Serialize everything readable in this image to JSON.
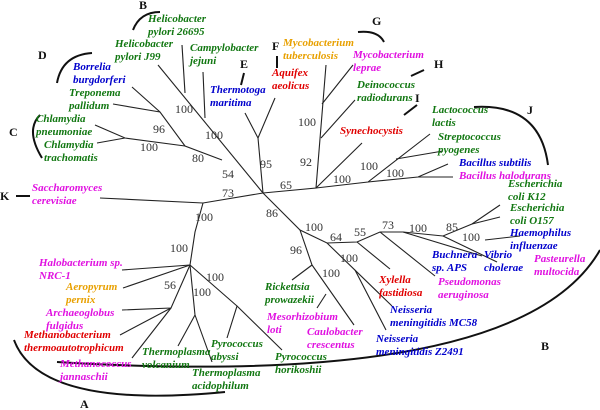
{
  "colors": {
    "green": "#117711",
    "blue": "#0000cc",
    "magenta": "#e010e0",
    "red": "#e00000",
    "orange": "#e8a000"
  },
  "taxa": [
    {
      "lines": [
        "Helicobacter",
        "pylori 26695"
      ],
      "color": "green"
    },
    {
      "lines": [
        "Helicobacter",
        "pylori J99"
      ],
      "color": "green"
    },
    {
      "lines": [
        "Campylobacter",
        "jejuni"
      ],
      "color": "green"
    },
    {
      "lines": [
        "Borrelia",
        "burgdorferi"
      ],
      "color": "blue"
    },
    {
      "lines": [
        "Treponema",
        "pallidum"
      ],
      "color": "green"
    },
    {
      "lines": [
        "Chlamydia",
        "pneumoniae"
      ],
      "color": "green"
    },
    {
      "lines": [
        "Chlamydia",
        "trachomatis"
      ],
      "color": "green"
    },
    {
      "lines": [
        "Thermotoga",
        "maritima"
      ],
      "color": "blue"
    },
    {
      "lines": [
        "Aquifex",
        "aeolicus"
      ],
      "color": "red"
    },
    {
      "lines": [
        "Mycobacterium",
        "tuberculosis"
      ],
      "color": "orange"
    },
    {
      "lines": [
        "Mycobacterium",
        "leprae"
      ],
      "color": "magenta"
    },
    {
      "lines": [
        "Deinococcus",
        "radiodurans"
      ],
      "color": "green"
    },
    {
      "lines": [
        "Synechocystis"
      ],
      "color": "red"
    },
    {
      "lines": [
        "Lactococcus",
        "lactis"
      ],
      "color": "green"
    },
    {
      "lines": [
        "Streptococcus",
        "pyogenes"
      ],
      "color": "green"
    },
    {
      "lines": [
        "Bacillus subtilis"
      ],
      "color": "blue"
    },
    {
      "lines": [
        "Bacillus halodurans"
      ],
      "color": "magenta"
    },
    {
      "lines": [
        "Escherichia",
        "coli K12"
      ],
      "color": "green"
    },
    {
      "lines": [
        "Escherichia",
        "coli O157"
      ],
      "color": "green"
    },
    {
      "lines": [
        "Haemophilus",
        "influenzae"
      ],
      "color": "blue"
    },
    {
      "lines": [
        "Pasteurella",
        "multocida"
      ],
      "color": "magenta"
    },
    {
      "lines": [
        "Vibrio",
        "cholerae"
      ],
      "color": "blue"
    },
    {
      "lines": [
        "Buchnera",
        "sp. APS"
      ],
      "color": "blue"
    },
    {
      "lines": [
        "Pseudomonas",
        "aeruginosa"
      ],
      "color": "magenta"
    },
    {
      "lines": [
        "Xylella",
        "fastidiosa"
      ],
      "color": "red"
    },
    {
      "lines": [
        "Neisseria",
        "meningitidis MC58"
      ],
      "color": "blue"
    },
    {
      "lines": [
        "Neisseria",
        "meningitidis Z2491"
      ],
      "color": "blue"
    },
    {
      "lines": [
        "Caulobacter",
        "crescentus"
      ],
      "color": "magenta"
    },
    {
      "lines": [
        "Mesorhizobium",
        "loti"
      ],
      "color": "magenta"
    },
    {
      "lines": [
        "Rickettsia",
        "prowazekii"
      ],
      "color": "green"
    },
    {
      "lines": [
        "Pyrococcus",
        "horikoshii"
      ],
      "color": "green"
    },
    {
      "lines": [
        "Pyrococcus",
        "abyssi"
      ],
      "color": "green"
    },
    {
      "lines": [
        "Thermoplasma",
        "acidophilum"
      ],
      "color": "green"
    },
    {
      "lines": [
        "Thermoplasma",
        "volcanium"
      ],
      "color": "green"
    },
    {
      "lines": [
        "Methanococcus",
        "jannaschii"
      ],
      "color": "magenta"
    },
    {
      "lines": [
        "Methanobacterium",
        "thermoautotrophicum"
      ],
      "color": "red"
    },
    {
      "lines": [
        "Archaeoglobus",
        "fulgidus"
      ],
      "color": "magenta"
    },
    {
      "lines": [
        "Aeropyrum",
        "pernix"
      ],
      "color": "orange"
    },
    {
      "lines": [
        "Halobacterium sp.",
        "NRC-1"
      ],
      "color": "magenta"
    },
    {
      "lines": [
        "Saccharomyces",
        "cerevisiae"
      ],
      "color": "magenta"
    }
  ],
  "bootstrap": [
    "100",
    "100",
    "96",
    "80",
    "100",
    "54",
    "95",
    "100",
    "92",
    "65",
    "100",
    "100",
    "100",
    "73",
    "100",
    "100",
    "56",
    "100",
    "100",
    "86",
    "96",
    "100",
    "64",
    "100",
    "55",
    "73",
    "100",
    "85",
    "100",
    "100"
  ],
  "clades": [
    "A",
    "B",
    "B",
    "C",
    "D",
    "E",
    "F",
    "G",
    "H",
    "I",
    "J",
    "K"
  ]
}
